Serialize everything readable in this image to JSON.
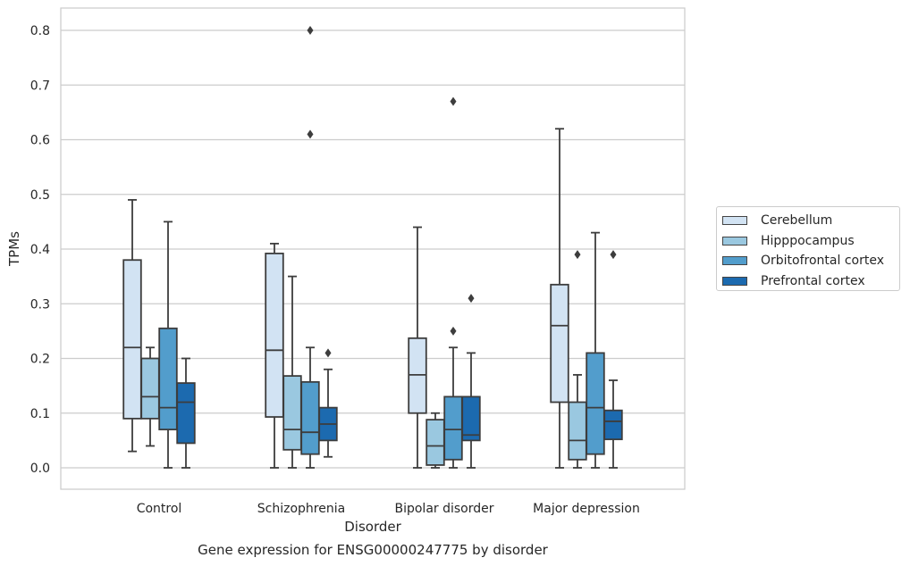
{
  "caption": "Gene expression for ENSG00000247775 by disorder",
  "chart_data": {
    "type": "box",
    "title": "",
    "xlabel": "Disorder",
    "ylabel": "TPMs",
    "ylim": [
      -0.04,
      0.84
    ],
    "yticks": [
      0.0,
      0.1,
      0.2,
      0.3,
      0.4,
      0.5,
      0.6,
      0.7,
      0.8
    ],
    "ytick_labels": [
      "0.0",
      "0.1",
      "0.2",
      "0.3",
      "0.4",
      "0.5",
      "0.6",
      "0.7",
      "0.8"
    ],
    "grid": "horizontal",
    "legend_position": "right",
    "categories": [
      "Control",
      "Schizophrenia",
      "Bipolar disorder",
      "Major depression"
    ],
    "series": [
      {
        "name": "Cerebellum",
        "color": "#d2e3f3",
        "boxes": [
          {
            "whislo": 0.03,
            "q1": 0.09,
            "med": 0.22,
            "q3": 0.38,
            "whishi": 0.49,
            "fliers": []
          },
          {
            "whislo": 0.0,
            "q1": 0.093,
            "med": 0.215,
            "q3": 0.392,
            "whishi": 0.41,
            "fliers": []
          },
          {
            "whislo": 0.0,
            "q1": 0.1,
            "med": 0.17,
            "q3": 0.237,
            "whishi": 0.44,
            "fliers": []
          },
          {
            "whislo": 0.0,
            "q1": 0.12,
            "med": 0.26,
            "q3": 0.335,
            "whishi": 0.62,
            "fliers": []
          }
        ]
      },
      {
        "name": "Hipppocampus",
        "color": "#9ac8e0",
        "boxes": [
          {
            "whislo": 0.04,
            "q1": 0.09,
            "med": 0.13,
            "q3": 0.2,
            "whishi": 0.22,
            "fliers": []
          },
          {
            "whislo": 0.0,
            "q1": 0.033,
            "med": 0.07,
            "q3": 0.168,
            "whishi": 0.35,
            "fliers": []
          },
          {
            "whislo": 0.0,
            "q1": 0.005,
            "med": 0.04,
            "q3": 0.088,
            "whishi": 0.1,
            "fliers": []
          },
          {
            "whislo": 0.0,
            "q1": 0.015,
            "med": 0.05,
            "q3": 0.12,
            "whishi": 0.17,
            "fliers": [
              0.39
            ]
          }
        ]
      },
      {
        "name": "Orbitofrontal cortex",
        "color": "#529dcc",
        "boxes": [
          {
            "whislo": 0.0,
            "q1": 0.07,
            "med": 0.11,
            "q3": 0.255,
            "whishi": 0.45,
            "fliers": []
          },
          {
            "whislo": 0.0,
            "q1": 0.025,
            "med": 0.065,
            "q3": 0.157,
            "whishi": 0.22,
            "fliers": [
              0.61,
              0.8
            ]
          },
          {
            "whislo": 0.0,
            "q1": 0.015,
            "med": 0.07,
            "q3": 0.13,
            "whishi": 0.22,
            "fliers": [
              0.25,
              0.67
            ]
          },
          {
            "whislo": 0.0,
            "q1": 0.025,
            "med": 0.11,
            "q3": 0.21,
            "whishi": 0.43,
            "fliers": []
          }
        ]
      },
      {
        "name": "Prefrontal cortex",
        "color": "#1c6aaf",
        "boxes": [
          {
            "whislo": 0.0,
            "q1": 0.045,
            "med": 0.12,
            "q3": 0.155,
            "whishi": 0.2,
            "fliers": []
          },
          {
            "whislo": 0.02,
            "q1": 0.05,
            "med": 0.08,
            "q3": 0.11,
            "whishi": 0.18,
            "fliers": [
              0.21
            ]
          },
          {
            "whislo": 0.0,
            "q1": 0.05,
            "med": 0.06,
            "q3": 0.13,
            "whishi": 0.21,
            "fliers": [
              0.31
            ]
          },
          {
            "whislo": 0.0,
            "q1": 0.052,
            "med": 0.085,
            "q3": 0.105,
            "whishi": 0.16,
            "fliers": [
              0.39
            ]
          }
        ]
      }
    ]
  }
}
